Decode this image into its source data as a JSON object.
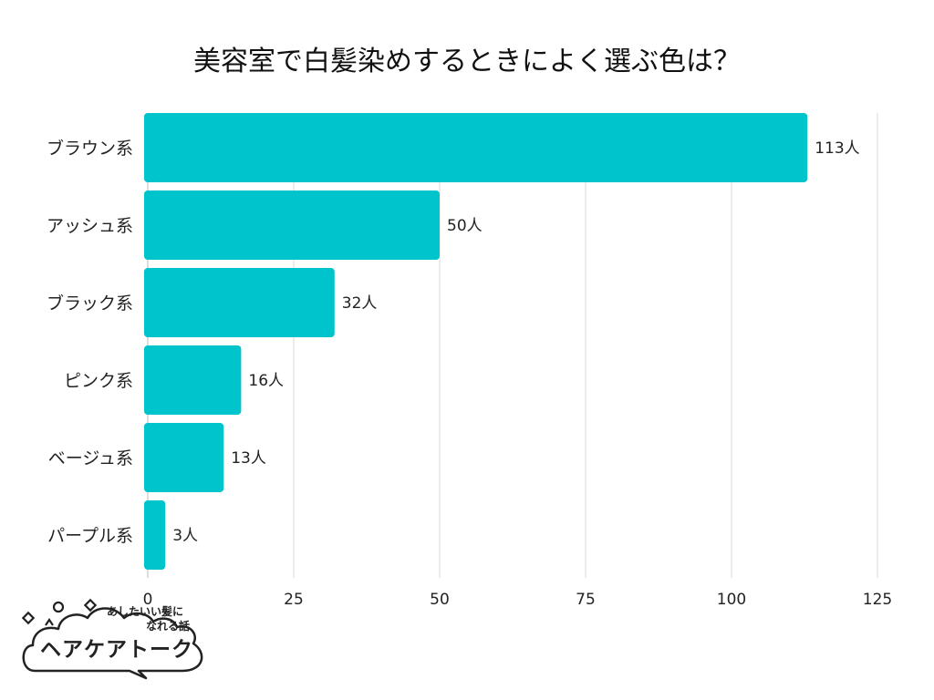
{
  "chart_data": {
    "type": "bar",
    "orientation": "horizontal",
    "title": "美容室で白髪染めするときによく選ぶ色は？",
    "categories": [
      "ブラウン系",
      "アッシュ系",
      "ブラック系",
      "ピンク系",
      "ベージュ系",
      "パープル系"
    ],
    "values": [
      113,
      50,
      32,
      16,
      13,
      3
    ],
    "value_labels": [
      "113人",
      "50人",
      "32人",
      "16人",
      "13人",
      "3人"
    ],
    "xlim": [
      0,
      125
    ],
    "xticks": [
      0,
      25,
      50,
      75,
      100,
      125
    ],
    "grid": "vertical",
    "bar_color": "#00C4CC",
    "grid_color": "#D9D9D9"
  },
  "logo": {
    "tagline_line1": "あしたいい髪に",
    "tagline_line2": "なれる話",
    "name": "ヘアケアトーク"
  }
}
